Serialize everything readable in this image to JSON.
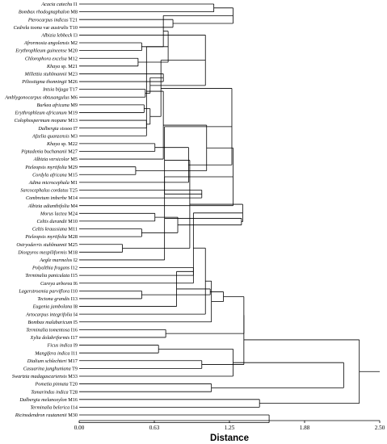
{
  "chart_data": {
    "type": "dendrogram",
    "xlabel": "Distance",
    "ticks": [
      "0.00",
      "0.63",
      "1.25",
      "1.88",
      "2.50"
    ],
    "xlim": [
      0,
      2.5
    ],
    "leaves": [
      {
        "name": "Acacia catechu",
        "code": "I1"
      },
      {
        "name": "Bombax rhodognaphalon",
        "code": "M8"
      },
      {
        "name": "Pterocarpus indicus",
        "code": "T21"
      },
      {
        "name": "Cedrela toona",
        "var": "var",
        "extra": "australis",
        "code": "T10"
      },
      {
        "name": "Albizia lebbeck",
        "code": "I3"
      },
      {
        "name": "Afrormosia angolensis",
        "code": "M2"
      },
      {
        "name": "Erythrophleum guineense",
        "code": "M20"
      },
      {
        "name": "Chlorophora excelsa",
        "code": "M12"
      },
      {
        "name": "Khaya",
        "extra": "sp.",
        "code": "M21"
      },
      {
        "name": "Millettia stuhlmannii",
        "code": "M23"
      },
      {
        "name": "Piliostigma thonningii",
        "code": "M26"
      },
      {
        "name": "Intsia bijuga",
        "code": "T17"
      },
      {
        "name": "Amblygonocarpus obtusangulus",
        "code": "M6"
      },
      {
        "name": "Burkea africana",
        "code": "M9"
      },
      {
        "name": "Erythrophleum africanum",
        "code": "M19"
      },
      {
        "name": "Colophospermum mopane",
        "code": "M13"
      },
      {
        "name": "Dalbergia sissoo",
        "code": "I7"
      },
      {
        "name": "Afzelia quanzensis",
        "code": "M3"
      },
      {
        "name": "Khaya",
        "extra": "sp.",
        "code": "M22"
      },
      {
        "name": "Piptadenia buchananii",
        "code": "M27"
      },
      {
        "name": "Albizia versicolor",
        "code": "M5"
      },
      {
        "name": "Pteleopsis myrtifolia",
        "code": "M29"
      },
      {
        "name": "Cordyla africana",
        "code": "M15"
      },
      {
        "name": "Adina microcephala",
        "code": "M1"
      },
      {
        "name": "Sarcocephalus cordatus",
        "code": "T25"
      },
      {
        "name": "Combretum imberbe",
        "code": "M14"
      },
      {
        "name": "Albizia adianthifolia",
        "code": "M4"
      },
      {
        "name": "Morus lactea",
        "code": "M24"
      },
      {
        "name": "Celtis durandii",
        "code": "M10"
      },
      {
        "name": "Celtis kraussiana",
        "code": "M11"
      },
      {
        "name": "Pteleopsis myrtifolia",
        "code": "M28"
      },
      {
        "name": "Ostryoderris stuhlmannii",
        "code": "M25"
      },
      {
        "name": "Diospyros mespiliformis",
        "code": "M18"
      },
      {
        "name": "Aegle marmelos",
        "code": "I2"
      },
      {
        "name": "Polyalthia fragans",
        "code": "I12"
      },
      {
        "name": "Terminalia paniculata",
        "code": "I15"
      },
      {
        "name": "Careya arborea",
        "code": "I6"
      },
      {
        "name": "Lagerstroemia parviflora",
        "code": "I10"
      },
      {
        "name": "Tectona grandis",
        "code": "I13"
      },
      {
        "name": "Eugenia jambolana",
        "code": "I8"
      },
      {
        "name": "Artocarpus integrifolia",
        "code": "I4"
      },
      {
        "name": "Bombax malabaricum",
        "code": "I5"
      },
      {
        "name": "Terminalia tomentosa",
        "code": "I16"
      },
      {
        "name": "Xylia dolabriformis",
        "code": "I17"
      },
      {
        "name": "Ficus indica",
        "code": "I9"
      },
      {
        "name": "Mangifera indica",
        "code": "I11"
      },
      {
        "name": "Dialium schlechteri",
        "code": "M17"
      },
      {
        "name": "Casuarina junghuniana",
        "code": "T9"
      },
      {
        "name": "Swartzia madagascariensis",
        "code": "M33"
      },
      {
        "name": "Pometia pinnata",
        "code": "T20"
      },
      {
        "name": "Tamarindus indica",
        "code": "T28"
      },
      {
        "name": "Dalbergia melanoxylon",
        "code": "M16"
      },
      {
        "name": "Terminalia belerica",
        "code": "I14"
      },
      {
        "name": "Ricinodendron rautanenii",
        "code": "M30"
      }
    ],
    "merges": [
      [
        0,
        1,
        1.12
      ],
      [
        2,
        3,
        0.78
      ],
      [
        "A",
        "B",
        1.28
      ],
      [
        5,
        6,
        0.52
      ],
      [
        7,
        8,
        0.49
      ],
      [
        "C",
        "D",
        0.7
      ],
      [
        9,
        10,
        0.7
      ],
      [
        11,
        12,
        0.55
      ],
      [
        "E",
        "F",
        0.74
      ],
      [
        13,
        14,
        0.54
      ],
      [
        15,
        16,
        0.56
      ],
      [
        "G",
        "H",
        0.59
      ],
      [
        "I",
        17,
        0.56
      ],
      [
        "J",
        "K",
        0.59
      ],
      [
        "L",
        4,
        1.05
      ],
      [
        18,
        19,
        0.63
      ],
      [
        20,
        "M",
        0.7
      ],
      [
        21,
        22,
        0.47
      ],
      [
        "N",
        "O",
        0.68
      ],
      [
        "P",
        23,
        0.91
      ],
      [
        "Q",
        "R",
        1.06
      ],
      [
        "S",
        "T",
        1.27
      ],
      [
        24,
        25,
        1.02
      ],
      [
        "U",
        26,
        1.28
      ],
      [
        27,
        28,
        0.63
      ],
      [
        29,
        30,
        0.52
      ],
      [
        31,
        32,
        0.36
      ],
      [
        "V",
        "W",
        0.71
      ],
      [
        "X",
        33,
        0.71
      ],
      [
        "Y",
        "Z",
        0.82
      ],
      [
        "AA",
        "AB",
        0.92
      ],
      [
        "AC",
        "AD",
        1.35
      ],
      [
        "AE",
        "AF",
        1.36
      ],
      [
        34,
        35,
        0.95
      ],
      [
        "AG",
        36,
        0.95
      ],
      [
        37,
        38,
        0.52
      ],
      [
        "AH",
        39,
        0.81
      ],
      [
        "AI",
        40,
        1.05
      ],
      [
        "AJ",
        "AK",
        1.09
      ],
      [
        "AL",
        41,
        1.1
      ],
      [
        42,
        43,
        0.72
      ],
      [
        "AM",
        "AN",
        1.2
      ],
      [
        44,
        45,
        0.66
      ],
      [
        "AO",
        "AP",
        1.37
      ],
      [
        46,
        47,
        1.02
      ],
      [
        "AQ",
        48,
        1.28
      ],
      [
        49,
        50,
        1.1
      ],
      [
        "AR",
        "AS",
        1.37
      ],
      [
        51,
        52,
        1.5
      ],
      [
        "AT",
        "AU",
        2.2
      ],
      [
        53,
        54,
        1.58
      ],
      [
        "AV",
        "AW",
        2.33
      ]
    ]
  }
}
